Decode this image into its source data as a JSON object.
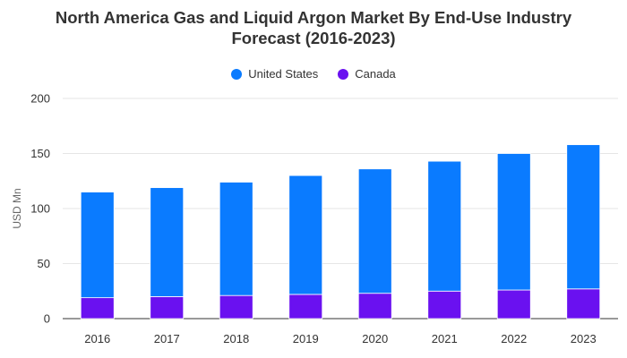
{
  "chart_data": {
    "type": "bar",
    "stacked": true,
    "title_line1": "North America Gas and Liquid Argon Market By End-Use Industry",
    "title_line2": "Forecast (2016-2023)",
    "xlabel": "",
    "ylabel": "USD Mn",
    "ylim": [
      0,
      200
    ],
    "yticks": [
      "0",
      "50",
      "100",
      "150",
      "200"
    ],
    "grid": true,
    "legend_position": "top-center",
    "categories": [
      "2016",
      "2017",
      "2018",
      "2019",
      "2020",
      "2021",
      "2022",
      "2023"
    ],
    "series": [
      {
        "name": "Canada",
        "color": "#6a11f0",
        "values": [
          19,
          20,
          21,
          22,
          23,
          25,
          26,
          27
        ]
      },
      {
        "name": "United States",
        "color": "#0a7bff",
        "values": [
          96,
          99,
          103,
          108,
          113,
          118,
          124,
          131
        ]
      }
    ]
  }
}
